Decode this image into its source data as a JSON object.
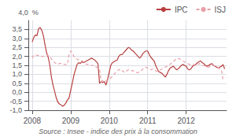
{
  "chart_data": {
    "type": "line",
    "ylabel": "4,0  %",
    "annotations": [
      "Source : Insee - indice des prix à la consommation"
    ],
    "legend": "upper right",
    "grid": true,
    "xlim": [
      2007.9,
      2013.05
    ],
    "xticks": [
      2008,
      2009,
      2010,
      2011,
      2012
    ],
    "ylim": [
      -1.0,
      4.0
    ],
    "yticks": [
      {
        "value": -1.0,
        "label": "-1,0"
      },
      {
        "value": -0.5,
        "label": "-0,5"
      },
      {
        "value": 0.0,
        "label": "0,0"
      },
      {
        "value": 0.5,
        "label": "0,5"
      },
      {
        "value": 1.0,
        "label": "1,0"
      },
      {
        "value": 1.5,
        "label": "1,5"
      },
      {
        "value": 2.0,
        "label": "2,0"
      },
      {
        "value": 2.5,
        "label": "2,5"
      },
      {
        "value": 3.0,
        "label": "3,0"
      },
      {
        "value": 3.5,
        "label": "3,5"
      }
    ],
    "x": [
      2008,
      2008.041667,
      2008.083333,
      2008.125,
      2008.166667,
      2008.208333,
      2008.25,
      2008.291667,
      2008.333333,
      2008.375,
      2008.416667,
      2008.458333,
      2008.5,
      2008.541667,
      2008.583333,
      2008.625,
      2008.666667,
      2008.708333,
      2008.75,
      2008.791667,
      2008.833333,
      2008.875,
      2008.916667,
      2008.958333,
      2009,
      2009.041667,
      2009.083333,
      2009.125,
      2009.166667,
      2009.208333,
      2009.25,
      2009.291667,
      2009.333333,
      2009.375,
      2009.416667,
      2009.458333,
      2009.5,
      2009.541667,
      2009.583333,
      2009.625,
      2009.666667,
      2009.708333,
      2009.75,
      2009.791667,
      2009.833333,
      2009.875,
      2009.916667,
      2009.958333,
      2010,
      2010.041667,
      2010.083333,
      2010.125,
      2010.166667,
      2010.208333,
      2010.25,
      2010.291667,
      2010.333333,
      2010.375,
      2010.416667,
      2010.458333,
      2010.5,
      2010.541667,
      2010.583333,
      2010.625,
      2010.666667,
      2010.708333,
      2010.75,
      2010.791667,
      2010.833333,
      2010.875,
      2010.916667,
      2010.958333,
      2011,
      2011.041667,
      2011.083333,
      2011.125,
      2011.166667,
      2011.208333,
      2011.25,
      2011.291667,
      2011.333333,
      2011.375,
      2011.416667,
      2011.458333,
      2011.5,
      2011.541667,
      2011.583333,
      2011.625,
      2011.666667,
      2011.708333,
      2011.75,
      2011.791667,
      2011.833333,
      2011.875,
      2011.916667,
      2011.958333,
      2012,
      2012.041667,
      2012.083333,
      2012.125,
      2012.166667,
      2012.208333,
      2012.25,
      2012.291667,
      2012.333333,
      2012.375,
      2012.416667,
      2012.458333,
      2012.5,
      2012.541667,
      2012.583333,
      2012.625,
      2012.666667,
      2012.708333,
      2012.75,
      2012.791667,
      2012.833333,
      2012.875,
      2012.916667,
      2012.958333,
      2013
    ],
    "series": [
      {
        "name": "IPC",
        "color": "#b84040",
        "line_style": "solid",
        "values": [
          2.8,
          3.05,
          3.2,
          3.15,
          3.55,
          3.6,
          3.45,
          3.15,
          2.65,
          2.2,
          1.95,
          1.5,
          0.85,
          0.4,
          0.05,
          -0.3,
          -0.55,
          -0.65,
          -0.7,
          -0.78,
          -0.72,
          -0.6,
          -0.42,
          -0.32,
          0.1,
          0.5,
          0.95,
          1.25,
          1.55,
          1.65,
          1.6,
          1.7,
          1.65,
          1.7,
          1.75,
          1.8,
          1.85,
          1.9,
          1.85,
          1.8,
          1.7,
          1.6,
          0.5,
          0.6,
          0.55,
          0.6,
          0.4,
          0.7,
          1.1,
          1.5,
          1.65,
          1.7,
          1.75,
          1.8,
          2.0,
          2.1,
          2.1,
          2.2,
          2.3,
          2.4,
          2.5,
          2.45,
          2.35,
          2.3,
          2.2,
          2.1,
          2.0,
          1.9,
          2.0,
          2.15,
          2.25,
          2.3,
          2.3,
          2.1,
          1.95,
          1.85,
          1.75,
          1.5,
          1.3,
          1.15,
          1.1,
          1.05,
          0.95,
          0.85,
          1.0,
          1.2,
          1.35,
          1.4,
          1.45,
          1.35,
          1.25,
          1.3,
          1.4,
          1.5,
          1.55,
          1.5,
          1.45,
          1.3,
          1.25,
          1.3,
          1.45,
          1.5,
          1.55,
          1.65,
          1.7,
          1.75,
          1.65,
          1.6,
          1.5,
          1.45,
          1.5,
          1.55,
          1.6,
          1.5,
          1.45,
          1.4,
          1.35,
          1.4,
          1.45,
          1.55,
          1.3
        ]
      },
      {
        "name": "ISJ",
        "color": "#e8a0a8",
        "line_style": "dashed",
        "values": [
          1.9,
          2.05,
          2.1,
          2.05,
          2.05,
          2.05,
          2.0,
          2.0,
          2.05,
          2.1,
          2.05,
          2.0,
          1.85,
          1.75,
          1.65,
          1.6,
          1.55,
          1.6,
          1.6,
          1.55,
          1.55,
          1.55,
          1.55,
          2.1,
          2.3,
          2.2,
          2.0,
          1.9,
          1.85,
          1.8,
          1.8,
          1.75,
          1.7,
          1.6,
          1.55,
          1.55,
          1.5,
          1.5,
          1.5,
          1.5,
          1.4,
          1.35,
          1.3,
          0.6,
          0.65,
          0.7,
          0.65,
          0.65,
          0.75,
          0.8,
          0.9,
          1.0,
          1.1,
          1.2,
          1.25,
          1.3,
          1.2,
          1.15,
          1.1,
          1.2,
          1.25,
          1.25,
          1.2,
          1.2,
          1.15,
          1.1,
          1.1,
          1.15,
          1.2,
          1.3,
          1.35,
          1.4,
          1.35,
          1.3,
          1.25,
          1.3,
          1.25,
          1.2,
          1.15,
          1.2,
          1.25,
          1.3,
          1.35,
          1.4,
          1.45,
          1.5,
          1.55,
          1.65,
          1.7,
          1.8,
          1.85,
          1.9,
          1.85,
          1.8,
          1.75,
          1.7,
          1.65,
          1.6,
          1.55,
          1.5,
          1.5,
          1.55,
          1.5,
          1.55,
          1.6,
          1.55,
          1.5,
          1.5,
          1.45,
          1.4,
          1.4,
          1.45,
          1.5,
          1.5,
          1.45,
          1.4,
          1.35,
          1.3,
          1.25,
          0.7,
          0.7
        ]
      }
    ]
  }
}
